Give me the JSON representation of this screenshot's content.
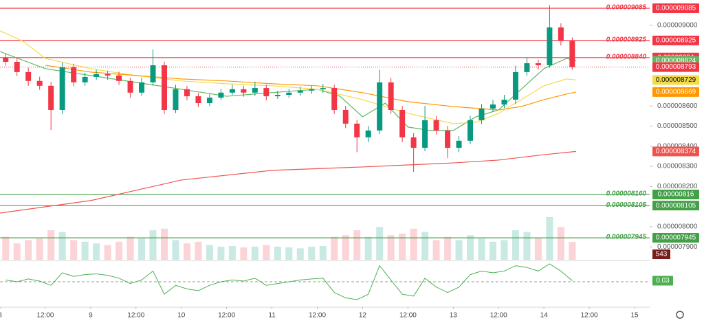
{
  "chart_data": {
    "type": "candlestick",
    "up_color": "#089981",
    "down_color": "#f23645",
    "xlim": [
      0,
      172
    ],
    "xticks": [
      {
        "value": 0,
        "label": "8"
      },
      {
        "value": 12,
        "label": "12:00"
      },
      {
        "value": 24,
        "label": "9"
      },
      {
        "value": 36,
        "label": "12:00"
      },
      {
        "value": 48,
        "label": "10"
      },
      {
        "value": 60,
        "label": "12:00"
      },
      {
        "value": 72,
        "label": "11"
      },
      {
        "value": 84,
        "label": "12:00"
      },
      {
        "value": 96,
        "label": "12"
      },
      {
        "value": 108,
        "label": "12:00"
      },
      {
        "value": 120,
        "label": "13"
      },
      {
        "value": 132,
        "label": "12:00"
      },
      {
        "value": 144,
        "label": "14"
      },
      {
        "value": 156,
        "label": "12:00"
      },
      {
        "value": 168,
        "label": "15"
      }
    ],
    "ylim": [
      7.836e-06,
      9.126e-06
    ],
    "yticks": [
      {
        "value": 9e-06,
        "label": "0.000009000"
      },
      {
        "value": 8.6e-06,
        "label": "0.000008600"
      },
      {
        "value": 8.5e-06,
        "label": "0.000008500"
      },
      {
        "value": 8.4e-06,
        "label": "0.000008400"
      },
      {
        "value": 8.3e-06,
        "label": "0.000008300"
      },
      {
        "value": 8.2e-06,
        "label": "0.000008200"
      },
      {
        "value": 8e-06,
        "label": "0.000008000"
      },
      {
        "value": 7.9e-06,
        "label": "0.000007900"
      }
    ],
    "grid": false,
    "x": [
      1.5,
      4.5,
      7.5,
      10.5,
      13.5,
      16.5,
      19.5,
      22.5,
      25.5,
      28.5,
      31.5,
      34.5,
      37.5,
      40.5,
      43.5,
      46.5,
      49.5,
      52.5,
      55.5,
      58.5,
      61.5,
      64.5,
      67.5,
      70.5,
      73.5,
      76.5,
      79.5,
      82.5,
      85.5,
      88.5,
      91.5,
      94.5,
      97.5,
      100.5,
      103.5,
      106.5,
      109.5,
      112.5,
      115.5,
      118.5,
      121.5,
      124.5,
      127.5,
      130.5,
      133.5,
      136.5,
      139.5,
      142.5,
      145.5,
      148.5,
      151.5
    ],
    "open": [
      8.84e-06,
      8.819e-06,
      8.768e-06,
      8.724e-06,
      8.7e-06,
      8.58e-06,
      8.792e-06,
      8.717e-06,
      8.744e-06,
      8.758e-06,
      8.751e-06,
      8.724e-06,
      8.666e-06,
      8.717e-06,
      8.802e-06,
      8.58e-06,
      8.683e-06,
      8.648e-06,
      8.614e-06,
      8.641e-06,
      8.666e-06,
      8.683e-06,
      8.666e-06,
      8.689e-06,
      8.648e-06,
      8.655e-06,
      8.666e-06,
      8.676e-06,
      8.683e-06,
      8.689e-06,
      8.58e-06,
      8.512e-06,
      8.444e-06,
      8.478e-06,
      8.717e-06,
      8.58e-06,
      8.444e-06,
      8.392e-06,
      8.529e-06,
      8.478e-06,
      8.392e-06,
      8.427e-06,
      8.529e-06,
      8.587e-06,
      8.607e-06,
      8.631e-06,
      8.768e-06,
      8.812e-06,
      8.802e-06,
      8.99e-06,
      8.922e-06
    ],
    "high": [
      8.86e-06,
      8.84e-06,
      8.79e-06,
      8.745e-06,
      8.72e-06,
      8.815e-06,
      8.81e-06,
      8.765e-06,
      8.78e-06,
      8.775e-06,
      8.77e-06,
      8.74e-06,
      8.74e-06,
      8.88e-06,
      8.82e-06,
      8.705e-06,
      8.7e-06,
      8.665e-06,
      8.66e-06,
      8.685e-06,
      8.705e-06,
      8.7e-06,
      8.72e-06,
      8.705e-06,
      8.675e-06,
      8.685e-06,
      8.695e-06,
      8.7e-06,
      8.71e-06,
      8.705e-06,
      8.6e-06,
      8.53e-06,
      8.5e-06,
      8.78e-06,
      8.74e-06,
      8.6e-06,
      8.465e-06,
      8.6e-06,
      8.55e-06,
      8.5e-06,
      8.45e-06,
      8.55e-06,
      8.61e-06,
      8.63e-06,
      8.655e-06,
      8.8e-06,
      8.84e-06,
      8.83e-06,
      9.1e-06,
      9.01e-06,
      8.94e-06
    ],
    "low": [
      8.8e-06,
      8.748e-06,
      8.7e-06,
      8.68e-06,
      8.48e-06,
      8.56e-06,
      8.697e-06,
      8.7e-06,
      8.73e-06,
      8.73e-06,
      8.704e-06,
      8.64e-06,
      8.65e-06,
      8.7e-06,
      8.56e-06,
      8.565e-06,
      8.628e-06,
      8.594e-06,
      8.6e-06,
      8.63e-06,
      8.655e-06,
      8.646e-06,
      8.65e-06,
      8.628e-06,
      8.635e-06,
      8.64e-06,
      8.65e-06,
      8.66e-06,
      8.665e-06,
      8.56e-06,
      8.49e-06,
      8.37e-06,
      8.42e-06,
      8.46e-06,
      8.56e-06,
      8.42e-06,
      8.273e-06,
      8.375e-06,
      8.458e-06,
      8.34e-06,
      8.37e-06,
      8.41e-06,
      8.51e-06,
      8.57e-06,
      8.59e-06,
      8.61e-06,
      8.75e-06,
      8.78e-06,
      8.79e-06,
      8.9e-06,
      8.78e-06
    ],
    "close": [
      8.819e-06,
      8.768e-06,
      8.724e-06,
      8.7e-06,
      8.58e-06,
      8.792e-06,
      8.717e-06,
      8.744e-06,
      8.758e-06,
      8.751e-06,
      8.724e-06,
      8.666e-06,
      8.717e-06,
      8.802e-06,
      8.58e-06,
      8.683e-06,
      8.648e-06,
      8.614e-06,
      8.641e-06,
      8.666e-06,
      8.683e-06,
      8.666e-06,
      8.689e-06,
      8.648e-06,
      8.655e-06,
      8.666e-06,
      8.676e-06,
      8.683e-06,
      8.689e-06,
      8.58e-06,
      8.512e-06,
      8.444e-06,
      8.478e-06,
      8.717e-06,
      8.58e-06,
      8.444e-06,
      8.392e-06,
      8.529e-06,
      8.478e-06,
      8.392e-06,
      8.427e-06,
      8.529e-06,
      8.587e-06,
      8.607e-06,
      8.631e-06,
      8.768e-06,
      8.812e-06,
      8.802e-06,
      8.99e-06,
      8.922e-06,
      8.793e-06
    ],
    "moving_averages": [
      {
        "color": "#5fb760",
        "x": [
          0,
          12,
          24,
          36,
          48,
          60,
          72,
          84,
          90,
          96,
          102,
          108,
          114,
          120,
          126,
          132,
          138,
          144,
          150,
          152.5
        ],
        "values": [
          8.87e-06,
          8.785e-06,
          8.751e-06,
          8.717e-06,
          8.683e-06,
          8.648e-06,
          8.666e-06,
          8.683e-06,
          8.648e-06,
          8.546e-06,
          8.614e-06,
          8.495e-06,
          8.478e-06,
          8.478e-06,
          8.546e-06,
          8.58e-06,
          8.683e-06,
          8.785e-06,
          8.836e-06,
          8.824e-06
        ]
      },
      {
        "color": "#f3dc4a",
        "x": [
          0,
          6,
          12,
          24,
          36,
          48,
          60,
          72,
          84,
          96,
          108,
          120,
          126,
          132,
          138,
          144,
          150,
          152.5
        ],
        "values": [
          8.973e-06,
          8.922e-06,
          8.836e-06,
          8.785e-06,
          8.751e-06,
          8.724e-06,
          8.71e-06,
          8.7e-06,
          8.683e-06,
          8.631e-06,
          8.563e-06,
          8.512e-06,
          8.519e-06,
          8.563e-06,
          8.631e-06,
          8.7e-06,
          8.734e-06,
          8.729e-06
        ]
      },
      {
        "color": "#ff9800",
        "x": [
          12,
          24,
          36,
          48,
          60,
          72,
          84,
          96,
          108,
          120,
          132,
          138,
          144,
          150,
          152.5
        ],
        "values": [
          8.802e-06,
          8.768e-06,
          8.751e-06,
          8.734e-06,
          8.724e-06,
          8.71e-06,
          8.7e-06,
          8.666e-06,
          8.621e-06,
          8.597e-06,
          8.58e-06,
          8.597e-06,
          8.631e-06,
          8.659e-06,
          8.669e-06
        ]
      },
      {
        "color": "#ef5350",
        "x": [
          0,
          24,
          48,
          72,
          96,
          108,
          120,
          132,
          144,
          152.5
        ],
        "values": [
          8.068e-06,
          8.13e-06,
          8.232e-06,
          8.28e-06,
          8.297e-06,
          8.307e-06,
          8.317e-06,
          8.331e-06,
          8.358e-06,
          8.374e-06
        ]
      }
    ],
    "price_lines": [
      {
        "value": 9.085e-06,
        "color": "#f23645"
      },
      {
        "value": 8.925e-06,
        "color": "#f23645"
      },
      {
        "value": 8.84e-06,
        "color": "#f23645"
      },
      {
        "value": 8.16e-06,
        "color": "#43a047"
      },
      {
        "value": 8.105e-06,
        "color": "#43a047"
      },
      {
        "value": 7.945e-06,
        "color": "#43a047"
      }
    ],
    "price_line_labels": [
      "0.000009085",
      "0.000008925",
      "0.000008840",
      "0.000008160",
      "0.000008105",
      "0.000007945"
    ],
    "volume": {
      "badge_color": "#7a1c1c",
      "values": [
        700,
        500,
        600,
        650,
        900,
        850,
        600,
        550,
        500,
        450,
        550,
        700,
        650,
        900,
        950,
        600,
        500,
        550,
        450,
        400,
        420,
        380,
        400,
        450,
        400,
        380,
        350,
        400,
        420,
        700,
        750,
        900,
        700,
        1000,
        750,
        800,
        950,
        850,
        600,
        700,
        600,
        750,
        650,
        550,
        600,
        900,
        850,
        650,
        1300,
        1000,
        543
      ]
    },
    "oscillator": {
      "color": "#4caf50",
      "values": [
        0.05,
        0.0,
        0.08,
        0.02,
        -0.1,
        0.25,
        0.15,
        0.2,
        0.22,
        0.18,
        0.1,
        -0.05,
        0.05,
        0.3,
        -0.35,
        -0.1,
        -0.2,
        -0.25,
        -0.1,
        0.0,
        0.05,
        0.02,
        0.1,
        -0.1,
        -0.05,
        0.0,
        0.05,
        0.08,
        0.1,
        -0.3,
        -0.45,
        -0.5,
        -0.35,
        0.45,
        0.05,
        -0.35,
        -0.4,
        0.1,
        -0.15,
        -0.3,
        -0.15,
        0.2,
        0.3,
        0.25,
        0.3,
        0.45,
        0.4,
        0.3,
        0.5,
        0.3,
        0.03
      ]
    }
  }
}
